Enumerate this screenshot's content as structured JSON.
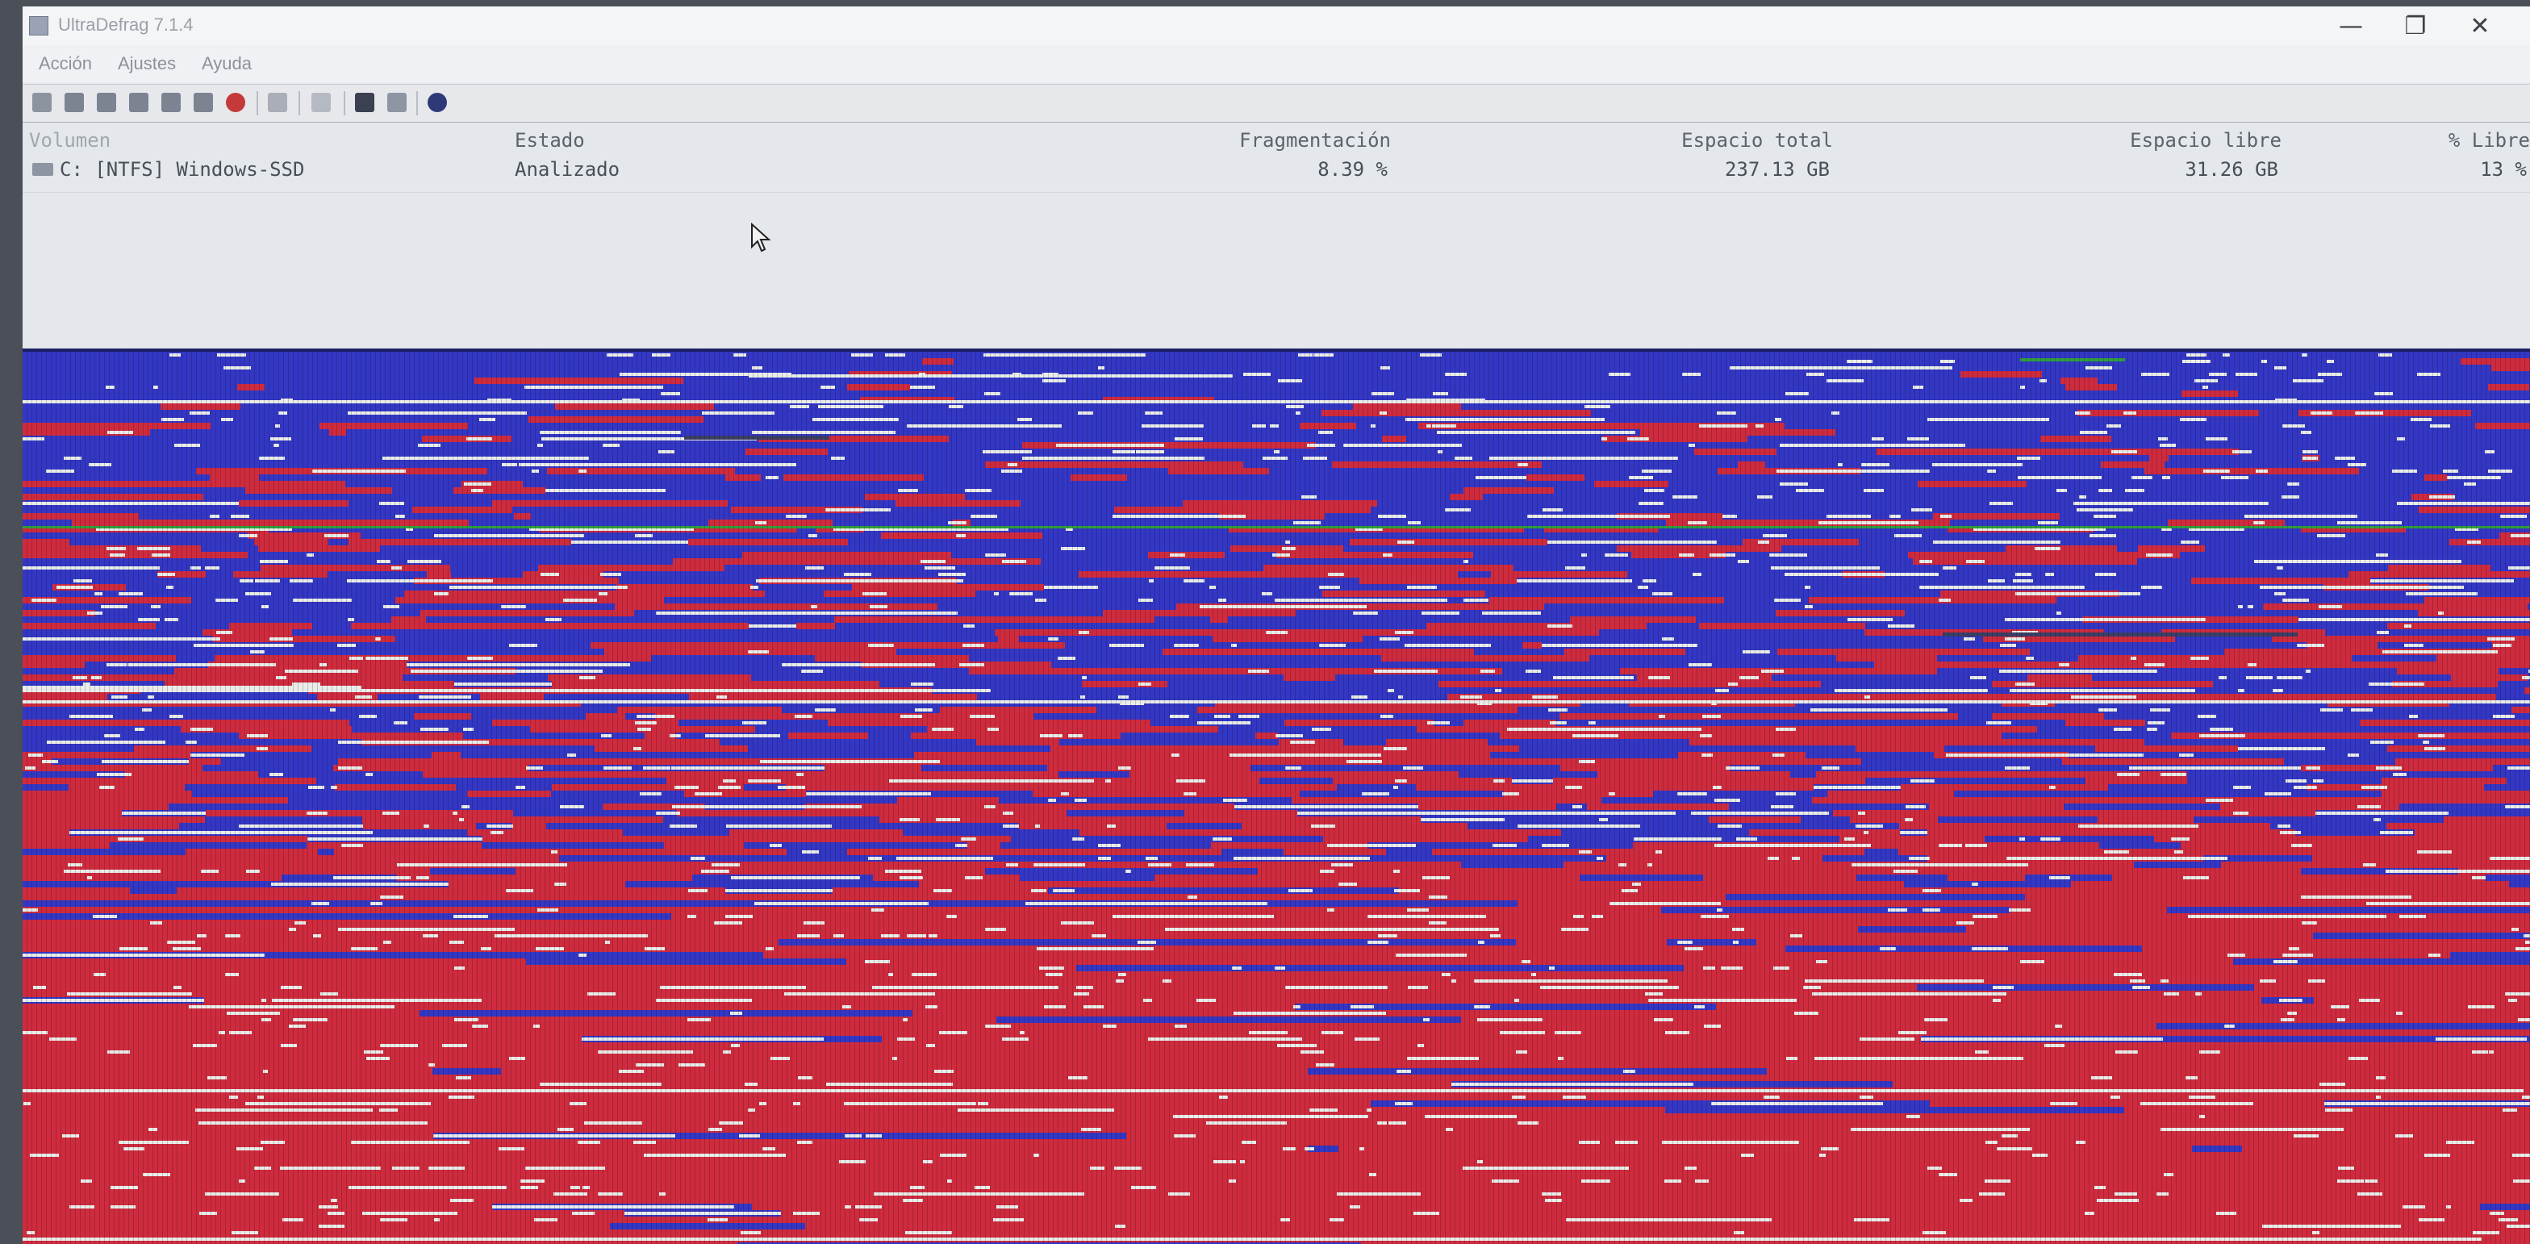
{
  "window": {
    "title": "UltraDefrag 7.1.4",
    "controls": {
      "minimize": "—",
      "maximize": "❐",
      "close": "✕"
    }
  },
  "menu": [
    {
      "label": "Acción"
    },
    {
      "label": "Ajustes"
    },
    {
      "label": "Ayuda"
    }
  ],
  "toolbar": {
    "buttons": [
      "analyze-icon",
      "defrag-icon",
      "quick-optimize-icon",
      "full-optimize-icon",
      "mft-optimize-icon",
      "pause-icon",
      "stop-icon",
      "report-icon",
      "repeat-icon",
      "boot-time-icon",
      "settings-icon",
      "help-icon"
    ]
  },
  "volume_list": {
    "columns": {
      "volume": "Volumen",
      "status": "Estado",
      "fragmentation": "Fragmentación",
      "total_space": "Espacio total",
      "free_space": "Espacio libre",
      "free_percent": "% Libre"
    },
    "rows": [
      {
        "volume": "C: [NTFS]  Windows-SSD",
        "status": "Analizado",
        "fragmentation": "8.39 %",
        "total_space": "237.13 GB",
        "free_space": "31.26 GB",
        "free_percent": "13 %"
      }
    ]
  },
  "cluster_map": {
    "colors": {
      "free": "#3337c4",
      "fragmented": "#cf2b3e",
      "contiguous": "#e9ece9",
      "mft": "#2fa03c",
      "locked": "#3a3f66"
    }
  }
}
